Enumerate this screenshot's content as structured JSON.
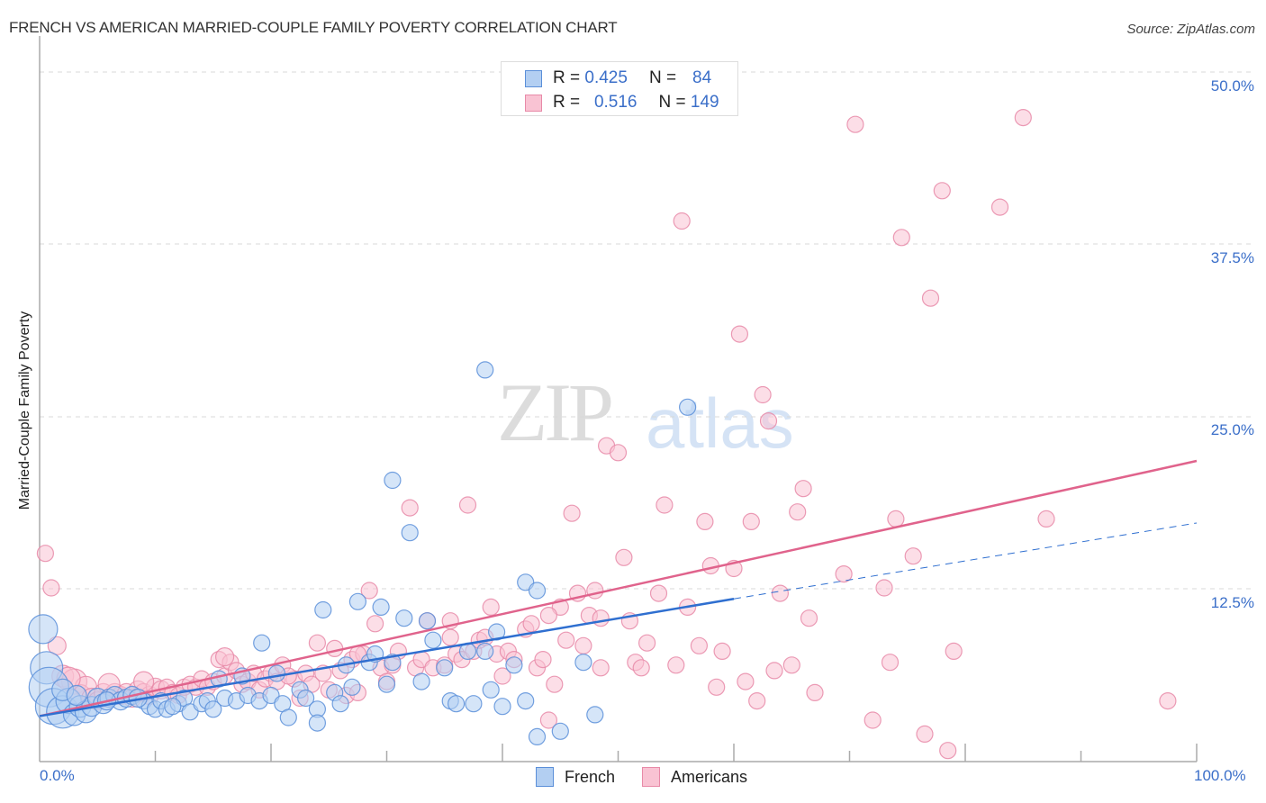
{
  "header": {
    "title": "FRENCH VS AMERICAN MARRIED-COUPLE FAMILY POVERTY CORRELATION CHART",
    "source": "Source: ZipAtlas.com"
  },
  "legend_top": {
    "rows": [
      {
        "series": "French",
        "r_label": "R =",
        "r_value": "0.425",
        "n_label": "N =",
        "n_value": "84"
      },
      {
        "series": "Americans",
        "r_label": "R =",
        "r_value": "0.516",
        "n_label": "N =",
        "n_value": "149"
      }
    ]
  },
  "legend_bottom": {
    "items": [
      {
        "label": "French"
      },
      {
        "label": "Americans"
      }
    ]
  },
  "axes": {
    "y_label": "Married-Couple Family Poverty",
    "y_ticks": [
      "50.0%",
      "37.5%",
      "25.0%",
      "12.5%"
    ],
    "x_ticks": [
      "0.0%",
      "100.0%"
    ]
  },
  "watermark": {
    "part1": "ZIP",
    "part2": "atlas"
  },
  "colors": {
    "french_fill": "#b3cff2",
    "french_stroke": "#5b8fd9",
    "french_line": "#2f6fd0",
    "americans_fill": "#f9c3d3",
    "americans_stroke": "#e88aa8",
    "americans_line": "#e0638c",
    "tick_text": "#3b6fc9"
  },
  "chart_data": {
    "type": "scatter",
    "title": "FRENCH VS AMERICAN MARRIED-COUPLE FAMILY POVERTY CORRELATION CHART",
    "xlabel": "",
    "ylabel": "Married-Couple Family Poverty",
    "xlim": [
      0,
      100
    ],
    "ylim": [
      0,
      50
    ],
    "x_tick_labels": [
      "0.0%",
      "100.0%"
    ],
    "y_tick_labels": [
      "12.5%",
      "25.0%",
      "37.5%",
      "50.0%"
    ],
    "grid": "horizontal dashed",
    "legend_position": "top-center",
    "series": [
      {
        "name": "French",
        "r": 0.425,
        "n": 84,
        "trend": {
          "x0": 0,
          "y0": 3.3,
          "x1": 60,
          "y1": 11.8,
          "x_dashed_end": 100,
          "y_dashed_end": 17.3
        },
        "points": [
          [
            0.3,
            9.6,
            16
          ],
          [
            0.6,
            6.8,
            18
          ],
          [
            0.8,
            5.4,
            22
          ],
          [
            1.2,
            4.0,
            20
          ],
          [
            2.0,
            3.6,
            18
          ],
          [
            2.5,
            4.4,
            14
          ],
          [
            3.0,
            3.4,
            12
          ],
          [
            3.5,
            4.0,
            12
          ],
          [
            4.0,
            3.6,
            12
          ],
          [
            4.5,
            4.0,
            11
          ],
          [
            5.0,
            4.6,
            11
          ],
          [
            5.5,
            4.2,
            11
          ],
          [
            6.0,
            4.6,
            10
          ],
          [
            6.5,
            4.8,
            10
          ],
          [
            7.0,
            4.4,
            10
          ],
          [
            7.5,
            4.6,
            10
          ],
          [
            8.0,
            4.8,
            10
          ],
          [
            9.0,
            4.4,
            9
          ],
          [
            9.5,
            4.0,
            9
          ],
          [
            10.0,
            3.8,
            9
          ],
          [
            10.5,
            4.4,
            9
          ],
          [
            11.0,
            3.8,
            9
          ],
          [
            12.0,
            4.2,
            9
          ],
          [
            12.5,
            4.6,
            9
          ],
          [
            13.0,
            3.6,
            9
          ],
          [
            14.0,
            4.2,
            9
          ],
          [
            14.5,
            4.4,
            9
          ],
          [
            15.0,
            3.8,
            9
          ],
          [
            15.5,
            6.0,
            9
          ],
          [
            16.0,
            4.6,
            9
          ],
          [
            17.0,
            4.4,
            9
          ],
          [
            17.5,
            6.2,
            9
          ],
          [
            18.0,
            4.8,
            9
          ],
          [
            19.0,
            4.4,
            9
          ],
          [
            19.2,
            8.6,
            9
          ],
          [
            20.0,
            4.8,
            9
          ],
          [
            20.5,
            6.4,
            9
          ],
          [
            21.0,
            4.2,
            9
          ],
          [
            21.5,
            3.2,
            9
          ],
          [
            22.5,
            5.2,
            9
          ],
          [
            23.0,
            4.6,
            9
          ],
          [
            24.0,
            3.8,
            9
          ],
          [
            24.0,
            2.8,
            9
          ],
          [
            24.5,
            11.0,
            9
          ],
          [
            25.5,
            5.0,
            9
          ],
          [
            26.0,
            4.2,
            9
          ],
          [
            26.5,
            7.0,
            9
          ],
          [
            27.0,
            5.4,
            9
          ],
          [
            27.5,
            11.6,
            9
          ],
          [
            28.5,
            7.2,
            9
          ],
          [
            29.0,
            7.8,
            9
          ],
          [
            29.5,
            11.2,
            9
          ],
          [
            30.0,
            5.6,
            9
          ],
          [
            30.5,
            7.2,
            9
          ],
          [
            30.5,
            20.4,
            9
          ],
          [
            31.5,
            10.4,
            9
          ],
          [
            32.0,
            16.6,
            9
          ],
          [
            33.0,
            5.8,
            9
          ],
          [
            33.5,
            10.2,
            9
          ],
          [
            34.0,
            8.8,
            9
          ],
          [
            35.0,
            6.8,
            9
          ],
          [
            35.5,
            4.4,
            9
          ],
          [
            36.0,
            4.2,
            9
          ],
          [
            37.0,
            8.0,
            9
          ],
          [
            37.5,
            4.2,
            9
          ],
          [
            38.5,
            8.0,
            9
          ],
          [
            38.5,
            28.4,
            9
          ],
          [
            39.0,
            5.2,
            9
          ],
          [
            39.5,
            9.4,
            9
          ],
          [
            40.0,
            4.0,
            9
          ],
          [
            41.0,
            7.0,
            9
          ],
          [
            42.0,
            4.4,
            9
          ],
          [
            42.0,
            13.0,
            9
          ],
          [
            43.0,
            1.8,
            9
          ],
          [
            43.0,
            12.4,
            9
          ],
          [
            45.0,
            2.2,
            9
          ],
          [
            47.0,
            7.2,
            9
          ],
          [
            48.0,
            3.4,
            9
          ],
          [
            56.0,
            25.7,
            9
          ],
          [
            2.0,
            5.2,
            12
          ],
          [
            3.2,
            4.8,
            11
          ],
          [
            5.8,
            4.4,
            10
          ],
          [
            8.5,
            4.6,
            10
          ],
          [
            11.5,
            4.0,
            9
          ]
        ]
      },
      {
        "name": "Americans",
        "r": 0.516,
        "n": 149,
        "trend": {
          "x0": 0,
          "y0": 3.3,
          "x1": 100,
          "y1": 21.8
        },
        "points": [
          [
            0.5,
            15.1,
            9
          ],
          [
            1.0,
            12.6,
            9
          ],
          [
            1.5,
            8.4,
            10
          ],
          [
            2.0,
            6.2,
            12
          ],
          [
            3.0,
            5.8,
            14
          ],
          [
            3.5,
            4.8,
            12
          ],
          [
            4.0,
            5.4,
            12
          ],
          [
            4.5,
            4.6,
            11
          ],
          [
            5.0,
            4.4,
            10
          ],
          [
            5.5,
            5.0,
            10
          ],
          [
            6.0,
            4.6,
            10
          ],
          [
            6.5,
            5.0,
            10
          ],
          [
            7.0,
            4.8,
            10
          ],
          [
            7.5,
            5.0,
            10
          ],
          [
            8.0,
            4.6,
            10
          ],
          [
            8.5,
            5.2,
            10
          ],
          [
            9.0,
            5.0,
            10
          ],
          [
            9.5,
            4.8,
            10
          ],
          [
            10.0,
            5.4,
            10
          ],
          [
            10.5,
            5.2,
            10
          ],
          [
            11.0,
            5.4,
            9
          ],
          [
            11.5,
            5.0,
            9
          ],
          [
            12.0,
            4.8,
            9
          ],
          [
            12.5,
            5.4,
            9
          ],
          [
            13.0,
            5.6,
            9
          ],
          [
            13.5,
            5.4,
            9
          ],
          [
            14.0,
            6.0,
            9
          ],
          [
            14.5,
            5.4,
            9
          ],
          [
            15.0,
            5.8,
            9
          ],
          [
            15.5,
            7.4,
            9
          ],
          [
            16.0,
            6.2,
            9
          ],
          [
            16.5,
            7.2,
            9
          ],
          [
            17.0,
            6.6,
            9
          ],
          [
            17.5,
            5.6,
            9
          ],
          [
            18.0,
            5.8,
            9
          ],
          [
            18.5,
            6.4,
            9
          ],
          [
            19.0,
            5.2,
            9
          ],
          [
            19.5,
            6.0,
            9
          ],
          [
            20.0,
            6.4,
            9
          ],
          [
            20.5,
            5.8,
            9
          ],
          [
            21.0,
            7.0,
            9
          ],
          [
            22.0,
            6.0,
            9
          ],
          [
            22.5,
            4.6,
            9
          ],
          [
            23.0,
            6.4,
            9
          ],
          [
            23.5,
            5.6,
            9
          ],
          [
            24.0,
            8.6,
            9
          ],
          [
            24.5,
            6.4,
            9
          ],
          [
            25.0,
            5.2,
            9
          ],
          [
            25.5,
            8.2,
            9
          ],
          [
            26.0,
            6.6,
            9
          ],
          [
            26.5,
            4.8,
            9
          ],
          [
            27.0,
            7.4,
            9
          ],
          [
            27.5,
            5.0,
            9
          ],
          [
            28.0,
            7.8,
            9
          ],
          [
            28.5,
            12.4,
            9
          ],
          [
            29.0,
            10.0,
            9
          ],
          [
            29.5,
            6.8,
            9
          ],
          [
            30.0,
            5.8,
            9
          ],
          [
            30.5,
            7.0,
            9
          ],
          [
            31.0,
            8.0,
            9
          ],
          [
            32.0,
            18.4,
            9
          ],
          [
            32.5,
            6.8,
            9
          ],
          [
            33.0,
            7.4,
            9
          ],
          [
            33.5,
            10.2,
            9
          ],
          [
            34.0,
            6.8,
            9
          ],
          [
            35.0,
            7.0,
            9
          ],
          [
            35.5,
            9.0,
            9
          ],
          [
            36.0,
            7.8,
            9
          ],
          [
            36.5,
            7.4,
            9
          ],
          [
            37.0,
            18.6,
            9
          ],
          [
            37.5,
            8.0,
            9
          ],
          [
            38.0,
            8.8,
            9
          ],
          [
            38.5,
            9.0,
            9
          ],
          [
            39.0,
            11.2,
            9
          ],
          [
            39.5,
            7.8,
            9
          ],
          [
            40.0,
            6.2,
            9
          ],
          [
            40.5,
            8.0,
            9
          ],
          [
            41.0,
            7.4,
            9
          ],
          [
            42.0,
            9.6,
            9
          ],
          [
            42.5,
            10.0,
            9
          ],
          [
            43.0,
            6.8,
            9
          ],
          [
            43.5,
            7.4,
            9
          ],
          [
            44.0,
            3.0,
            9
          ],
          [
            44.5,
            5.6,
            9
          ],
          [
            45.0,
            11.2,
            9
          ],
          [
            45.5,
            8.8,
            9
          ],
          [
            46.0,
            18.0,
            9
          ],
          [
            46.5,
            12.2,
            9
          ],
          [
            47.0,
            8.4,
            9
          ],
          [
            47.5,
            10.6,
            9
          ],
          [
            48.0,
            12.4,
            9
          ],
          [
            48.5,
            6.8,
            9
          ],
          [
            49.0,
            22.9,
            9
          ],
          [
            50.0,
            22.4,
            9
          ],
          [
            50.5,
            14.8,
            9
          ],
          [
            51.0,
            10.2,
            9
          ],
          [
            51.5,
            7.2,
            9
          ],
          [
            52.0,
            6.8,
            9
          ],
          [
            52.5,
            8.6,
            9
          ],
          [
            53.5,
            12.2,
            9
          ],
          [
            54.0,
            18.6,
            9
          ],
          [
            55.0,
            7.0,
            9
          ],
          [
            55.5,
            39.2,
            9
          ],
          [
            56.0,
            11.2,
            9
          ],
          [
            57.0,
            8.4,
            9
          ],
          [
            57.5,
            17.4,
            9
          ],
          [
            58.0,
            14.2,
            9
          ],
          [
            58.5,
            5.4,
            9
          ],
          [
            59.0,
            8.0,
            9
          ],
          [
            60.0,
            14.0,
            9
          ],
          [
            60.5,
            31.0,
            9
          ],
          [
            61.0,
            5.8,
            9
          ],
          [
            61.5,
            17.4,
            9
          ],
          [
            62.0,
            4.4,
            9
          ],
          [
            62.5,
            26.6,
            9
          ],
          [
            63.0,
            24.7,
            9
          ],
          [
            63.5,
            6.6,
            9
          ],
          [
            64.0,
            12.2,
            9
          ],
          [
            65.0,
            7.0,
            9
          ],
          [
            65.5,
            18.1,
            9
          ],
          [
            66.0,
            19.8,
            9
          ],
          [
            66.5,
            10.4,
            9
          ],
          [
            67.0,
            5.0,
            9
          ],
          [
            69.5,
            13.6,
            9
          ],
          [
            70.5,
            46.2,
            9
          ],
          [
            72.0,
            3.0,
            9
          ],
          [
            73.0,
            12.6,
            9
          ],
          [
            73.5,
            7.2,
            9
          ],
          [
            74.0,
            17.6,
            9
          ],
          [
            74.5,
            38.0,
            9
          ],
          [
            75.5,
            14.9,
            9
          ],
          [
            76.5,
            2.0,
            9
          ],
          [
            77.0,
            33.6,
            9
          ],
          [
            78.0,
            41.4,
            9
          ],
          [
            78.5,
            0.8,
            9
          ],
          [
            79.0,
            8.0,
            9
          ],
          [
            83.0,
            40.2,
            9
          ],
          [
            85.0,
            46.7,
            9
          ],
          [
            87.0,
            17.6,
            9
          ],
          [
            97.5,
            4.4,
            9
          ],
          [
            2.5,
            6.0,
            13
          ],
          [
            6.0,
            5.6,
            12
          ],
          [
            9.0,
            5.8,
            11
          ],
          [
            16.0,
            7.6,
            10
          ],
          [
            21.5,
            6.2,
            9
          ],
          [
            27.5,
            7.8,
            9
          ],
          [
            35.5,
            10.2,
            9
          ],
          [
            44.0,
            10.6,
            9
          ],
          [
            48.5,
            10.4,
            9
          ]
        ]
      }
    ]
  }
}
